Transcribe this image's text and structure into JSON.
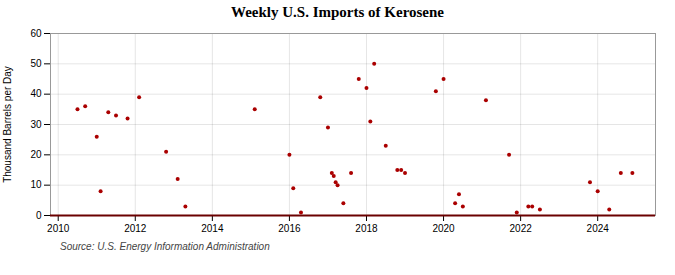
{
  "chart_data": {
    "type": "scatter",
    "title": "Weekly U.S. Imports of Kerosene",
    "y_label": "Thousand Barrels per Day",
    "annotations": [
      "Source: U.S. Energy Information Administration"
    ],
    "color": "#aa0000",
    "x": [
      2010.5,
      2010.7,
      2011.0,
      2011.1,
      2011.3,
      2011.5,
      2011.8,
      2012.1,
      2012.8,
      2013.1,
      2013.3,
      2015.1,
      2016.0,
      2016.1,
      2016.3,
      2016.8,
      2017.0,
      2017.1,
      2017.15,
      2017.2,
      2017.25,
      2017.4,
      2017.6,
      2017.8,
      2018.0,
      2018.1,
      2018.2,
      2018.5,
      2018.8,
      2018.9,
      2019.0,
      2019.8,
      2020.0,
      2020.3,
      2020.4,
      2020.5,
      2021.1,
      2021.7,
      2021.9,
      2022.2,
      2022.3,
      2022.5,
      2023.8,
      2024.0,
      2024.3,
      2024.6,
      2024.9
    ],
    "values": [
      35,
      36,
      26,
      8,
      34,
      33,
      32,
      39,
      21,
      12,
      3,
      35,
      20,
      9,
      1,
      39,
      29,
      14,
      13,
      11,
      10,
      4,
      14,
      45,
      42,
      31,
      50,
      23,
      15,
      15,
      14,
      41,
      45,
      4,
      7,
      3,
      38,
      20,
      1,
      3,
      3,
      2,
      11,
      8,
      2,
      14,
      14
    ],
    "xlim": [
      2009.8,
      2025.5
    ],
    "ylim": [
      0,
      60
    ],
    "xticks": [
      2010,
      2012,
      2014,
      2016,
      2018,
      2020,
      2022,
      2024
    ],
    "yticks": [
      0,
      10,
      20,
      30,
      40,
      50,
      60
    ],
    "grid": true
  }
}
